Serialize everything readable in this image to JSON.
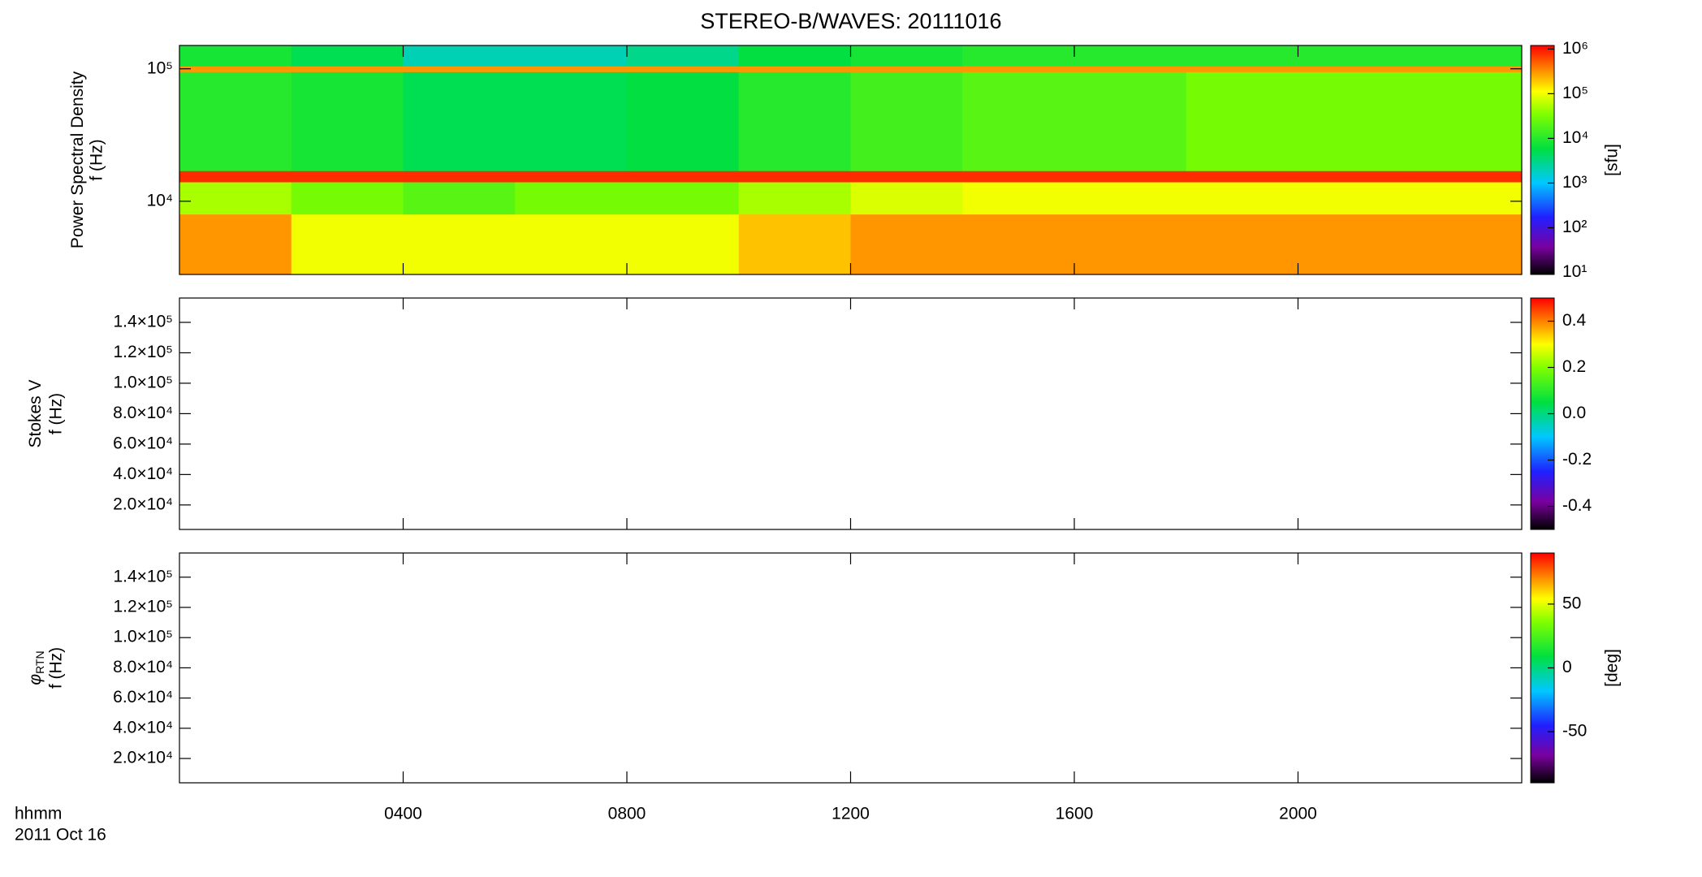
{
  "title": "STEREO-B/WAVES: 20111016",
  "x_label": "hhmm",
  "date_label": "2011 Oct 16",
  "time_axis": {
    "xlim": [
      0,
      24
    ],
    "xticks": [
      {
        "value": 4,
        "label": "0400"
      },
      {
        "value": 8,
        "label": "0800"
      },
      {
        "value": 12,
        "label": "1200"
      },
      {
        "value": 16,
        "label": "1600"
      },
      {
        "value": 20,
        "label": "2000"
      }
    ]
  },
  "chart_data": [
    {
      "type": "heatmap",
      "ylabel": "Power Spectral Density",
      "ylabel2": "f (Hz)",
      "ylog": true,
      "ylim": [
        2800,
        150000
      ],
      "yticks": [
        {
          "value": 10000,
          "label": "10⁴"
        },
        {
          "value": 100000,
          "label": "10⁵"
        }
      ],
      "time_bins": [
        0,
        2,
        4,
        6,
        8,
        10,
        12,
        14,
        16,
        18,
        20,
        22,
        24
      ],
      "freq_bins": [
        2800,
        8000,
        14000,
        17000,
        95000,
        105000,
        150000
      ],
      "z": [
        [
          300000,
          100000,
          100000,
          100000,
          100000,
          200000,
          300000,
          300000,
          300000,
          300000,
          300000,
          300000
        ],
        [
          50000,
          30000,
          20000,
          30000,
          30000,
          50000,
          80000,
          100000,
          100000,
          100000,
          100000,
          100000
        ],
        [
          800000,
          800000,
          800000,
          800000,
          800000,
          800000,
          800000,
          800000,
          800000,
          800000,
          800000,
          800000
        ],
        [
          10000,
          8000,
          5000,
          5000,
          6000,
          10000,
          15000,
          20000,
          20000,
          30000,
          30000,
          30000
        ],
        [
          300000,
          300000,
          300000,
          300000,
          300000,
          300000,
          300000,
          300000,
          300000,
          300000,
          300000,
          300000
        ],
        [
          8000,
          5000,
          2000,
          2000,
          3000,
          6000,
          8000,
          10000,
          10000,
          10000,
          10000,
          10000
        ]
      ],
      "clog": true,
      "clim": [
        9,
        1200000
      ],
      "cticks": [
        {
          "value": 10,
          "label": "10¹"
        },
        {
          "value": 100,
          "label": "10²"
        },
        {
          "value": 1000,
          "label": "10³"
        },
        {
          "value": 10000,
          "label": "10⁴"
        },
        {
          "value": 100000,
          "label": "10⁵"
        },
        {
          "value": 1000000,
          "label": "10⁶"
        }
      ],
      "clabel": "[sfu]"
    },
    {
      "type": "heatmap",
      "ylabel": "Stokes V",
      "ylabel2": "f (Hz)",
      "ylog": false,
      "ylim": [
        3900,
        156000
      ],
      "yticks": [
        {
          "value": 20000,
          "label": "2.0×10⁴"
        },
        {
          "value": 40000,
          "label": "4.0×10⁴"
        },
        {
          "value": 60000,
          "label": "6.0×10⁴"
        },
        {
          "value": 80000,
          "label": "8.0×10⁴"
        },
        {
          "value": 100000,
          "label": "1.0×10⁵"
        },
        {
          "value": 120000,
          "label": "1.2×10⁵"
        },
        {
          "value": 140000,
          "label": "1.4×10⁵"
        }
      ],
      "clog": false,
      "clim": [
        -0.5,
        0.5
      ],
      "cticks": [
        {
          "value": -0.4,
          "label": "-0.4"
        },
        {
          "value": -0.2,
          "label": "-0.2"
        },
        {
          "value": 0,
          "label": "0.0"
        },
        {
          "value": 0.2,
          "label": "0.2"
        },
        {
          "value": 0.4,
          "label": "0.4"
        }
      ]
    },
    {
      "type": "heatmap",
      "ylabel": "φ",
      "ylabel_sub": "RTN",
      "ylabel2": "f (Hz)",
      "ylog": false,
      "ylim": [
        3900,
        156000
      ],
      "yticks": [
        {
          "value": 20000,
          "label": "2.0×10⁴"
        },
        {
          "value": 40000,
          "label": "4.0×10⁴"
        },
        {
          "value": 60000,
          "label": "6.0×10⁴"
        },
        {
          "value": 80000,
          "label": "8.0×10⁴"
        },
        {
          "value": 100000,
          "label": "1.0×10⁵"
        },
        {
          "value": 120000,
          "label": "1.2×10⁵"
        },
        {
          "value": 140000,
          "label": "1.4×10⁵"
        }
      ],
      "clog": false,
      "clim": [
        -90,
        90
      ],
      "cticks": [
        -50,
        0,
        50
      ],
      "clabel": "[deg]"
    }
  ]
}
